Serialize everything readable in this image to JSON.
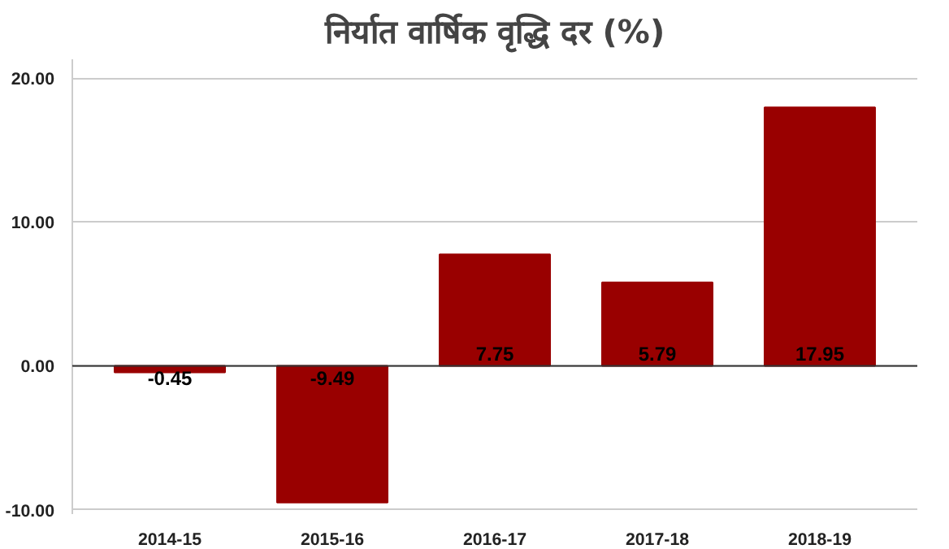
{
  "chart_data": {
    "type": "bar",
    "title": "निर्यात वार्षिक वृद्धि दर (%)",
    "categories": [
      "2014-15",
      "2015-16",
      "2016-17",
      "2017-18",
      "2018-19"
    ],
    "values": [
      -0.45,
      -9.49,
      7.75,
      5.79,
      17.95
    ],
    "color": "#990000",
    "ylim": [
      -10.3,
      21.3
    ],
    "yticks": [
      {
        "value": -10,
        "label": "-10.00"
      },
      {
        "value": 0,
        "label": "0.00"
      },
      {
        "value": 10,
        "label": "10.00"
      },
      {
        "value": 20,
        "label": "20.00"
      }
    ],
    "grid": "y",
    "data_labels": true
  }
}
